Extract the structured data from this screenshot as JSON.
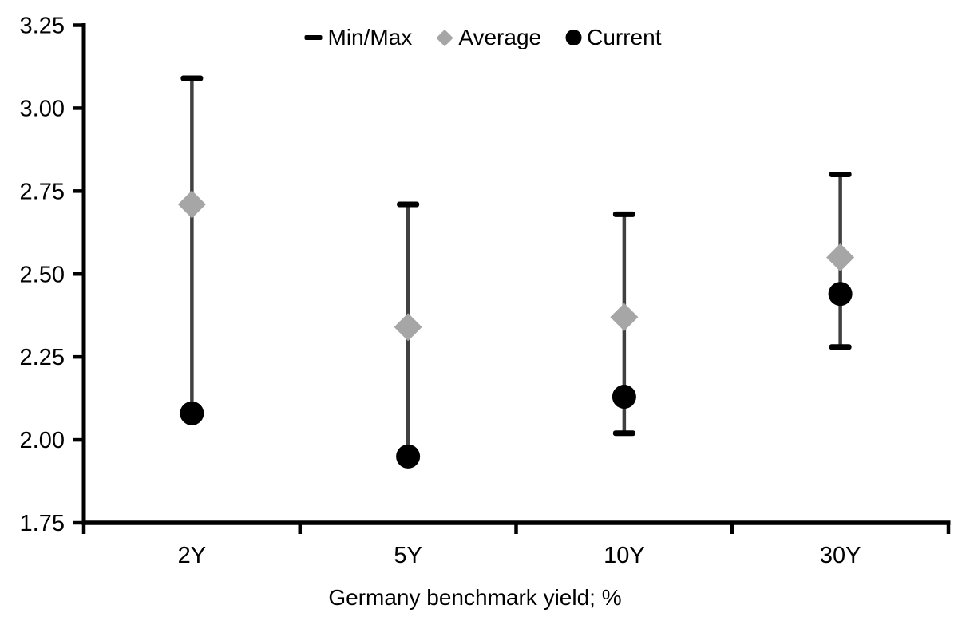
{
  "page": {
    "background": "#ffffff"
  },
  "chart_data": {
    "type": "scatter",
    "subtype": "min-max-range-with-markers",
    "title": "",
    "xlabel": "Germany benchmark yield; %",
    "ylabel": "",
    "categories": [
      "2Y",
      "5Y",
      "10Y",
      "30Y"
    ],
    "ylim": [
      1.75,
      3.25
    ],
    "ytick_step": 0.25,
    "yticks": [
      "3.25",
      "3.00",
      "2.75",
      "2.50",
      "2.25",
      "2.00",
      "1.75"
    ],
    "grid": false,
    "legend_position": "top-center",
    "series": [
      {
        "name": "Min/Max",
        "role": "range",
        "marker": "dash",
        "min": [
          2.08,
          1.95,
          2.02,
          2.28
        ],
        "max": [
          3.09,
          2.71,
          2.68,
          2.8
        ]
      },
      {
        "name": "Average",
        "role": "points",
        "marker": "diamond",
        "values": [
          2.71,
          2.34,
          2.37,
          2.55
        ]
      },
      {
        "name": "Current",
        "role": "points",
        "marker": "circle",
        "values": [
          2.08,
          1.95,
          2.13,
          2.44
        ]
      }
    ]
  },
  "colors": {
    "axis": "#000000",
    "text": "#000000",
    "range_line": "#404040",
    "cap": "#000000",
    "average": "#a6a6a6",
    "current": "#000000",
    "background": "#ffffff"
  }
}
